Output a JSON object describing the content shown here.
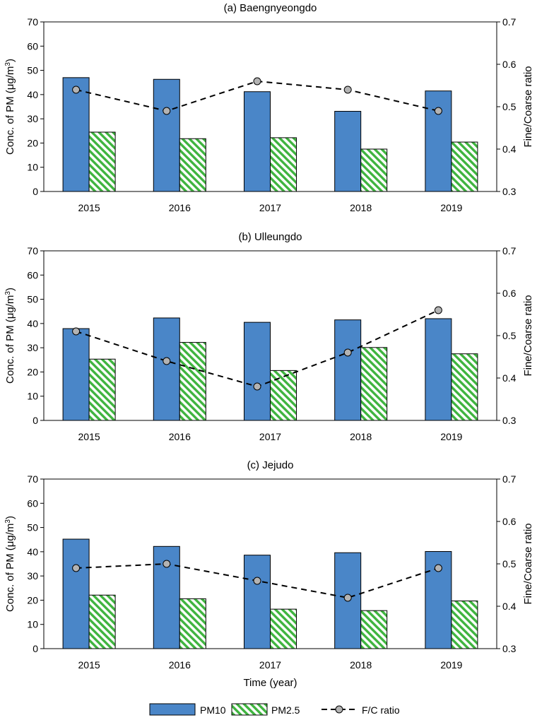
{
  "colors": {
    "pm10": "#4a86c8",
    "pm25_stripe": "#3fb43f",
    "ratio_marker": "#b3b3b3",
    "axis": "#000000"
  },
  "chart_data": [
    {
      "type": "bar",
      "title": "(a) Baengnyeongdo",
      "categories": [
        "2015",
        "2016",
        "2017",
        "2018",
        "2019"
      ],
      "ylabel_prefix": "Conc. of PM (μg/m",
      "ylabel_sup": "3",
      "ylabel_suffix": ")",
      "y2label": "Fine/Coarse ratio",
      "ylim": [
        0,
        70
      ],
      "yticks": [
        "0",
        "10",
        "20",
        "30",
        "40",
        "50",
        "60",
        "70"
      ],
      "y2lim": [
        0.3,
        0.7
      ],
      "y2ticks": [
        "0.3",
        "0.4",
        "0.5",
        "0.6",
        "0.7"
      ],
      "series": [
        {
          "name": "PM10",
          "values": [
            47,
            46.3,
            41.2,
            33.1,
            41.5
          ]
        },
        {
          "name": "PM2.5",
          "values": [
            24.5,
            21.8,
            22.2,
            17.5,
            20.4
          ]
        },
        {
          "name": "F/C ratio",
          "axis": "right",
          "values": [
            0.54,
            0.49,
            0.56,
            0.54,
            0.49
          ]
        }
      ]
    },
    {
      "type": "bar",
      "title": "(b) Ulleungdo",
      "categories": [
        "2015",
        "2016",
        "2017",
        "2018",
        "2019"
      ],
      "ylabel_prefix": "Conc. of PM (μg/m",
      "ylabel_sup": "3",
      "ylabel_suffix": ")",
      "y2label": "Fine/Coarse ratio",
      "ylim": [
        0,
        70
      ],
      "yticks": [
        "0",
        "10",
        "20",
        "30",
        "40",
        "50",
        "60",
        "70"
      ],
      "y2lim": [
        0.3,
        0.7
      ],
      "y2ticks": [
        "0.3",
        "0.4",
        "0.5",
        "0.6",
        "0.7"
      ],
      "series": [
        {
          "name": "PM10",
          "values": [
            37.9,
            42.3,
            40.5,
            41.5,
            42
          ]
        },
        {
          "name": "PM2.5",
          "values": [
            25.3,
            32.2,
            20.6,
            30.1,
            27.5
          ]
        },
        {
          "name": "F/C ratio",
          "axis": "right",
          "values": [
            0.51,
            0.44,
            0.38,
            0.46,
            0.56
          ]
        }
      ]
    },
    {
      "type": "bar",
      "title": "(c) Jejudo",
      "categories": [
        "2015",
        "2016",
        "2017",
        "2018",
        "2019"
      ],
      "ylabel_prefix": "Conc. of PM (μg/m",
      "ylabel_sup": "3",
      "ylabel_suffix": ")",
      "y2label": "Fine/Coarse ratio",
      "xlabel": "Time (year)",
      "ylim": [
        0,
        70
      ],
      "yticks": [
        "0",
        "10",
        "20",
        "30",
        "40",
        "50",
        "60",
        "70"
      ],
      "y2lim": [
        0.3,
        0.7
      ],
      "y2ticks": [
        "0.3",
        "0.4",
        "0.5",
        "0.6",
        "0.7"
      ],
      "series": [
        {
          "name": "PM10",
          "values": [
            45.2,
            42.2,
            38.6,
            39.6,
            40.1
          ]
        },
        {
          "name": "PM2.5",
          "values": [
            22.1,
            20.6,
            16.3,
            15.7,
            19.7
          ]
        },
        {
          "name": "F/C ratio",
          "axis": "right",
          "values": [
            0.49,
            0.5,
            0.46,
            0.42,
            0.49
          ]
        }
      ]
    }
  ],
  "legend": {
    "pm10": "PM10",
    "pm25": "PM2.5",
    "ratio": "F/C ratio"
  }
}
